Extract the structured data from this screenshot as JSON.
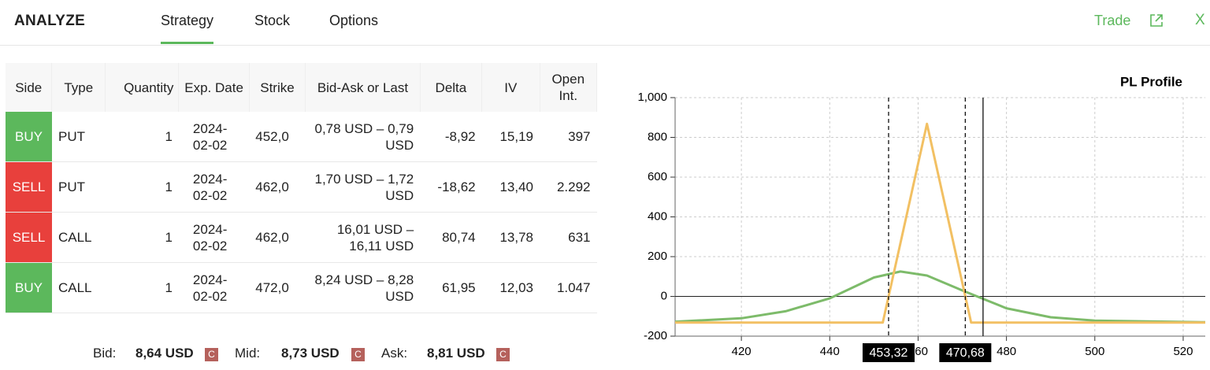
{
  "header": {
    "title": "ANALYZE",
    "tabs": [
      "Strategy",
      "Stock",
      "Options"
    ],
    "active_tab": 0,
    "trade": "Trade",
    "close": "X"
  },
  "table": {
    "headers": [
      "Side",
      "Type",
      "Quantity",
      "Exp. Date",
      "Strike",
      "Bid-Ask or Last",
      "Delta",
      "IV",
      "Open Int."
    ],
    "side_colors": [
      "#5cb85c",
      "#e8403c",
      "#e8403c",
      "#5cb85c"
    ],
    "rows": [
      [
        "BUY",
        "PUT",
        "1",
        "2024-02-02",
        "452,0",
        "0,78 USD – 0,79 USD",
        "-8,92",
        "15,19",
        "397"
      ],
      [
        "SELL",
        "PUT",
        "1",
        "2024-02-02",
        "462,0",
        "1,70 USD – 1,72 USD",
        "-18,62",
        "13,40",
        "2.292"
      ],
      [
        "SELL",
        "CALL",
        "1",
        "2024-02-02",
        "462,0",
        "16,01 USD – 16,11 USD",
        "80,74",
        "13,78",
        "631"
      ],
      [
        "BUY",
        "CALL",
        "1",
        "2024-02-02",
        "472,0",
        "8,24 USD – 8,28 USD",
        "61,95",
        "12,03",
        "1.047"
      ]
    ]
  },
  "quotes": [
    {
      "label": "Bid:",
      "value": "8,64 USD",
      "badge": "C"
    },
    {
      "label": "Mid:",
      "value": "8,73 USD",
      "badge": "C"
    },
    {
      "label": "Ask:",
      "value": "8,81 USD",
      "badge": "C"
    }
  ],
  "chart_data": {
    "type": "line",
    "title": "PL Profile",
    "xlim": [
      405,
      525
    ],
    "xticks": [
      420,
      440,
      460,
      480,
      500,
      520
    ],
    "ylim": [
      -200,
      1000
    ],
    "yticks": [
      -200,
      0,
      200,
      400,
      600,
      800,
      {
        "value": 1000,
        "label": "1,000"
      }
    ],
    "grid": true,
    "series": [
      {
        "color": "#7dbb6a",
        "x": [
          405,
          420,
          430,
          440,
          450,
          456,
          462,
          470,
          480,
          490,
          500,
          525
        ],
        "values": [
          -127,
          -110,
          -75,
          -10,
          95,
          125,
          105,
          30,
          -60,
          -105,
          -122,
          -130
        ]
      },
      {
        "color": "#f2c063",
        "x": [
          405,
          452,
          462,
          472,
          525
        ],
        "values": [
          -132,
          -132,
          868,
          -132,
          -132
        ]
      }
    ],
    "breakevens": [
      {
        "value": 453.32,
        "label": "453,32"
      },
      {
        "value": 470.68,
        "label": "470,68"
      }
    ],
    "price_line": 474.7
  }
}
